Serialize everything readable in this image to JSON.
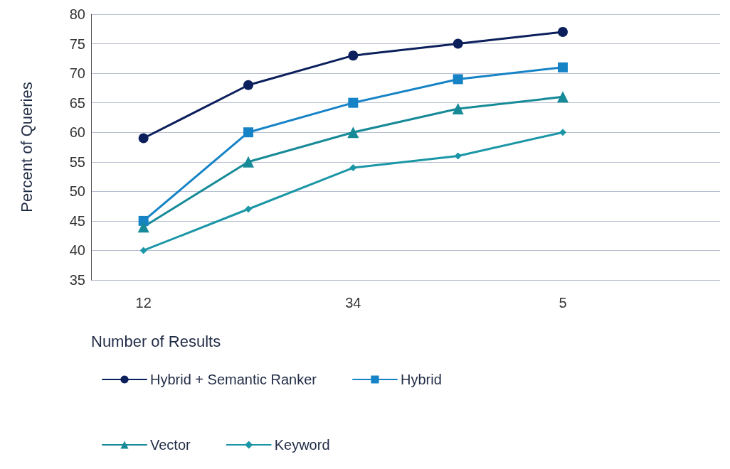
{
  "chart_data": {
    "type": "line",
    "xlabel": "Number of Results",
    "ylabel": "Percent of Queries",
    "categories": [
      "12",
      null,
      "34",
      null,
      "5",
      null
    ],
    "series": [
      {
        "name": "Hybrid + Semantic Ranker",
        "color": "#0b1f5c",
        "marker": "circle",
        "values": [
          59,
          68,
          73,
          75,
          77,
          null
        ]
      },
      {
        "name": "Hybrid",
        "color": "#1683c6",
        "marker": "square",
        "values": [
          45,
          60,
          65,
          69,
          71,
          null
        ]
      },
      {
        "name": "Vector",
        "color": "#178a98",
        "marker": "triangle",
        "values": [
          44,
          55,
          60,
          64,
          66,
          null
        ]
      },
      {
        "name": "Keyword",
        "color": "#1b96a6",
        "marker": "diamond",
        "values": [
          40,
          47,
          54,
          56,
          60,
          null
        ]
      }
    ],
    "ylim": [
      35,
      80
    ],
    "yticks": [
      35,
      40,
      45,
      50,
      55,
      60,
      65,
      70,
      75,
      80
    ],
    "grid": "y",
    "legend": "bottom",
    "line_style": "solid"
  }
}
